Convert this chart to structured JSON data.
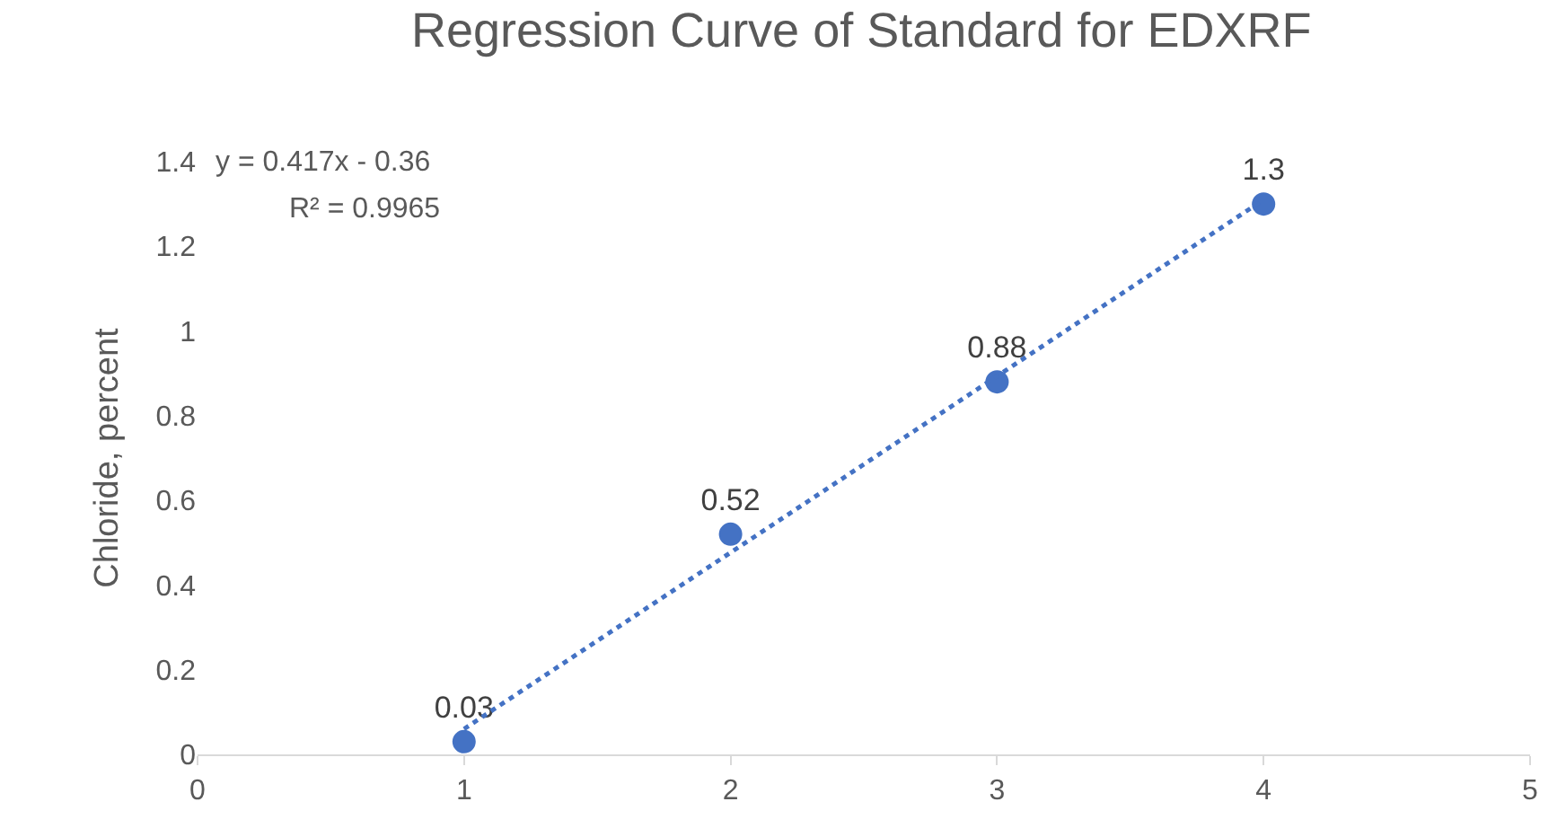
{
  "chart_data": {
    "type": "scatter",
    "title": "Regression Curve of Standard for EDXRF",
    "ylabel": "Chloride, percent",
    "x": [
      1,
      2,
      3,
      4
    ],
    "series": [
      {
        "color": "#4472c4",
        "values": [
          0.03,
          0.52,
          0.88,
          1.3
        ],
        "marker": "circle",
        "data_labels": true
      },
      {
        "type": "line",
        "color": "#4472c4",
        "x": [
          1,
          4
        ],
        "values": [
          0.06,
          1.31
        ],
        "line_style": "dotted",
        "marker": "none"
      }
    ],
    "annotations": [
      "y = 0.417x - 0.36",
      "R² = 0.9965"
    ],
    "xlim": [
      0,
      5
    ],
    "xticks": [
      0,
      1,
      2,
      3,
      4,
      5
    ],
    "ylim": [
      0,
      1.4
    ],
    "yticks": [
      0,
      0.2,
      0.4,
      0.6,
      0.8,
      1,
      1.2,
      1.4
    ],
    "grid": false
  }
}
